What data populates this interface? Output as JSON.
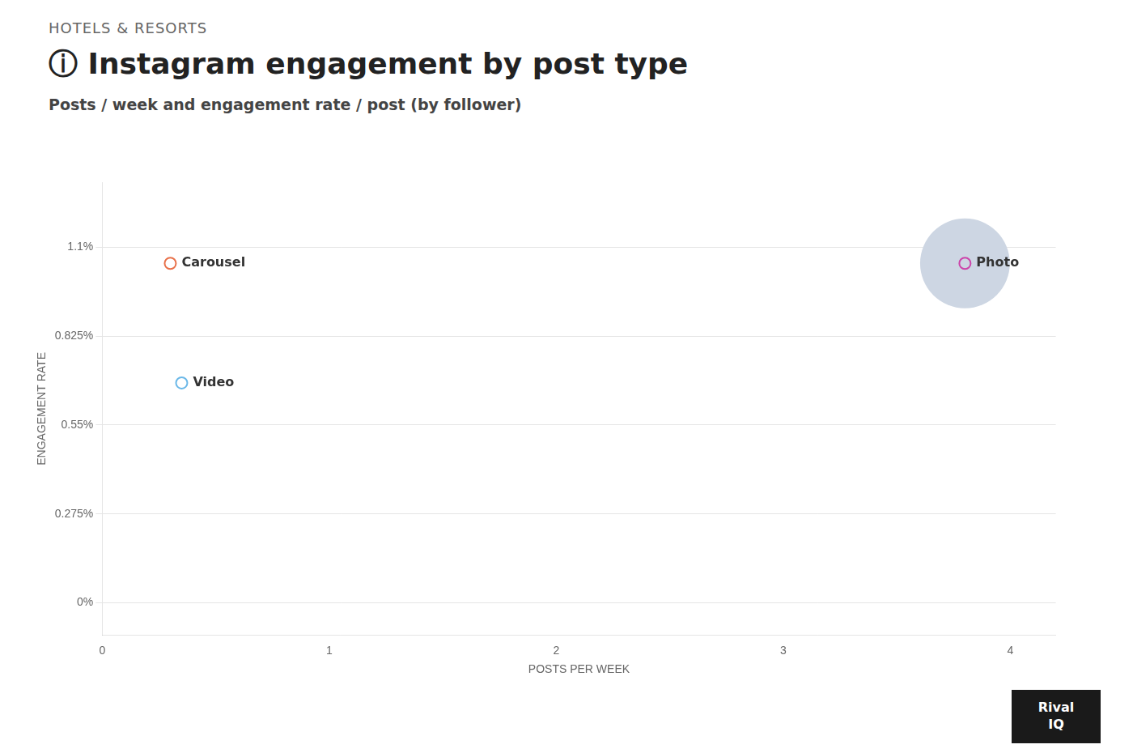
{
  "chart_data": {
    "type": "scatter",
    "supertitle": "HOTELS & RESORTS",
    "title": "ⓘ Instagram engagement by post type",
    "subtitle": "Posts / week and engagement rate / post (by follower)",
    "x_label": "POSTS PER WEEK",
    "y_label": "ENGAGEMENT RATE",
    "series": [
      {
        "name": "Carousel",
        "color": "#e8714a",
        "x": [
          0.3
        ],
        "values": [
          0.0105
        ]
      },
      {
        "name": "Video",
        "color": "#6bb8e8",
        "x": [
          0.35
        ],
        "values": [
          0.0068
        ]
      },
      {
        "name": "Photo",
        "color": "#cc44aa",
        "x": [
          3.8
        ],
        "values": [
          0.0105
        ],
        "bubble_sizes": [
          5000
        ],
        "bubble_color": "#cdd6e3"
      }
    ],
    "xlim": [
      0,
      4.2
    ],
    "xticks": [
      0,
      1,
      2,
      3,
      4
    ],
    "ylim": [
      -0.001,
      0.013
    ],
    "yticks": [
      {
        "value": 0,
        "label": "0%"
      },
      {
        "value": 0.00275,
        "label": "0.275%"
      },
      {
        "value": 0.0055,
        "label": "0.55%"
      },
      {
        "value": 0.00825,
        "label": "0.825%"
      },
      {
        "value": 0.011,
        "label": "1.1%"
      }
    ],
    "grid": "y",
    "annotations": [
      "Rival",
      "IQ"
    ]
  }
}
